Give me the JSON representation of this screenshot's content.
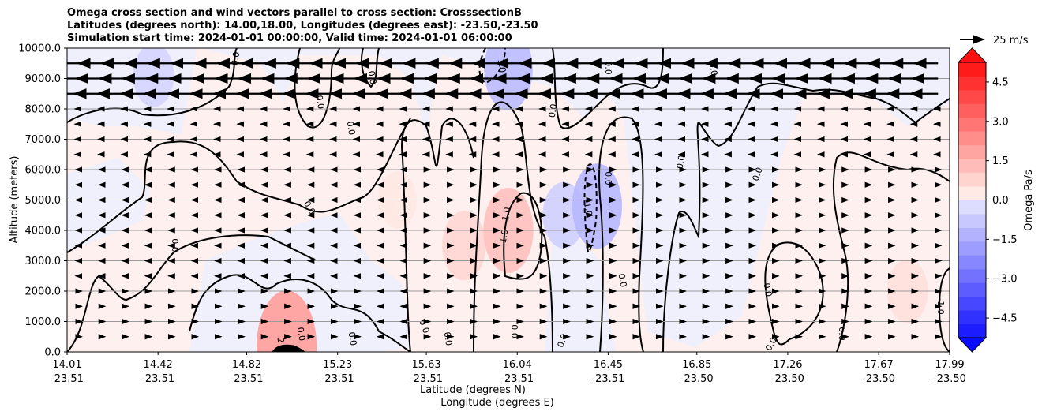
{
  "title_lines": [
    "Omega cross section and wind vectors parallel to cross section: CrosssectionB",
    "Latitudes (degrees north): 14.00,18.00, Longitudes (degrees east): -23.50,-23.50",
    "Simulation start time: 2024-01-01 00:00:00, Valid time: 2024-01-01 06:00:00"
  ],
  "reference_vector": "25 m/s",
  "chart_data": {
    "type": "heatmap",
    "ylabel": "Altitude (meters)",
    "xlabel_lines": [
      "Latitude (degrees N)",
      "Longitude (degrees E)"
    ],
    "ylim": [
      0,
      10000
    ],
    "yticks": [
      "0.0",
      "1000.0",
      "2000.0",
      "3000.0",
      "4000.0",
      "5000.0",
      "6000.0",
      "7000.0",
      "8000.0",
      "9000.0",
      "10000.0"
    ],
    "ytick_values": [
      0,
      1000,
      2000,
      3000,
      4000,
      5000,
      6000,
      7000,
      8000,
      9000,
      10000
    ],
    "xticks": [
      {
        "lat": "14.01",
        "lon": "-23.51"
      },
      {
        "lat": "14.42",
        "lon": "-23.51"
      },
      {
        "lat": "14.82",
        "lon": "-23.51"
      },
      {
        "lat": "15.23",
        "lon": "-23.51"
      },
      {
        "lat": "15.63",
        "lon": "-23.51"
      },
      {
        "lat": "16.04",
        "lon": "-23.51"
      },
      {
        "lat": "16.45",
        "lon": "-23.51"
      },
      {
        "lat": "16.85",
        "lon": "-23.50"
      },
      {
        "lat": "17.26",
        "lon": "-23.50"
      },
      {
        "lat": "17.67",
        "lon": "-23.50"
      },
      {
        "lat": "17.99",
        "lon": "-23.50"
      }
    ],
    "xtick_values": [
      14.01,
      14.42,
      14.82,
      15.23,
      15.63,
      16.04,
      16.45,
      16.85,
      17.26,
      17.67,
      17.99
    ],
    "grid": "horizontal",
    "colorbar": {
      "label": "Omega Pa/s",
      "range": [
        -5.25,
        5.25
      ],
      "ticks": [
        "−4.5",
        "−3.0",
        "−1.5",
        "0.0",
        "1.5",
        "3.0",
        "4.5"
      ],
      "tick_values": [
        -4.5,
        -3.0,
        -1.5,
        0.0,
        1.5,
        3.0,
        4.5
      ],
      "extend": "both"
    },
    "fields": [
      {
        "lat": 14.4,
        "alt": 9100,
        "omega": -0.5
      },
      {
        "lat": 15.5,
        "alt": 5000,
        "omega": 0.3
      },
      {
        "lat": 15.0,
        "alt": 200,
        "omega": 2.0
      },
      {
        "lat": 15.8,
        "alt": 3500,
        "omega": 0.7
      },
      {
        "lat": 16.0,
        "alt": 4000,
        "omega": 1.2
      },
      {
        "lat": 16.25,
        "alt": 4500,
        "omega": -0.6
      },
      {
        "lat": 16.4,
        "alt": 4800,
        "omega": -1.2
      },
      {
        "lat": 16.0,
        "alt": 9300,
        "omega": -1.1
      },
      {
        "lat": 17.8,
        "alt": 2000,
        "omega": 0.5
      }
    ],
    "contour_labels": [
      "0.0",
      "0.0",
      "0.0",
      "0.0",
      "0.0",
      "0.0",
      "0.0",
      "0.0",
      "0.0",
      "0.0",
      "0.0",
      "0.0",
      "0.0",
      "0.0",
      "0.0",
      "0.0",
      "0.0",
      "0.0",
      "0.0",
      "0.0",
      "0.0",
      "0.0",
      "-1.0",
      "1.0",
      "1.0",
      "1.0",
      "-1.0",
      "2"
    ]
  }
}
